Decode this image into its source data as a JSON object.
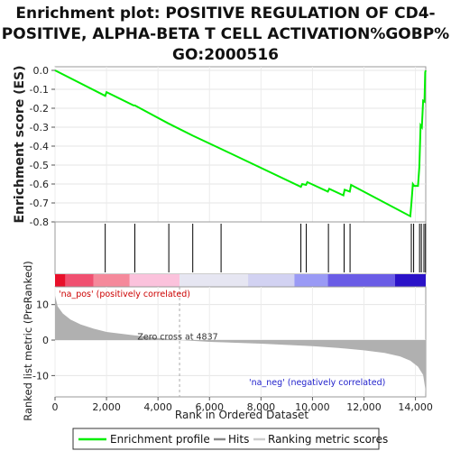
{
  "chart_data": {
    "type": "line",
    "title_lines": [
      "Enrichment plot: POSITIVE REGULATION OF CD4-",
      "POSITIVE, ALPHA-BETA T CELL ACTIVATION%GOBP%",
      "GO:2000516"
    ],
    "es_panel": {
      "ylabel": "Enrichment score (ES)",
      "ylim": [
        -0.8,
        0.0
      ],
      "yticks": [
        "0.0",
        "-0.1",
        "-0.2",
        "-0.3",
        "-0.4",
        "-0.5",
        "-0.6",
        "-0.7",
        "-0.8"
      ],
      "ytick_values": [
        0.0,
        -0.1,
        -0.2,
        -0.3,
        -0.4,
        -0.5,
        -0.6,
        -0.7,
        -0.8
      ],
      "series": [
        {
          "name": "Enrichment profile",
          "color": "#00ee00",
          "x": [
            0,
            1950,
            2000,
            3050,
            3100,
            4400,
            5350,
            6450,
            9550,
            9600,
            9750,
            9800,
            10600,
            10650,
            11200,
            11250,
            11450,
            11500,
            13800,
            13850,
            13900,
            13950,
            14100,
            14150,
            14200,
            14250,
            14300,
            14350,
            14380,
            14400
          ],
          "y": [
            0.0,
            -0.135,
            -0.115,
            -0.185,
            -0.185,
            -0.28,
            -0.345,
            -0.415,
            -0.615,
            -0.6,
            -0.605,
            -0.59,
            -0.64,
            -0.625,
            -0.66,
            -0.63,
            -0.64,
            -0.605,
            -0.77,
            -0.69,
            -0.6,
            -0.61,
            -0.61,
            -0.51,
            -0.29,
            -0.3,
            -0.16,
            -0.165,
            -0.01,
            0.0
          ]
        }
      ]
    },
    "hits": {
      "name": "Hits",
      "positions": [
        1950,
        3100,
        4420,
        5350,
        6450,
        9550,
        9760,
        10620,
        11230,
        11460,
        13840,
        13930,
        14160,
        14230,
        14330,
        14390
      ]
    },
    "rank_panel": {
      "ylabel": "Ranked list metric (PreRanked)",
      "xlabel": "Rank in Ordered Dataset",
      "ylim": [
        -16,
        15
      ],
      "yticks": [
        "10",
        "0",
        "-10"
      ],
      "ytick_values": [
        10,
        0,
        -10
      ],
      "metric_curve": {
        "x": [
          0,
          100,
          300,
          600,
          1000,
          1500,
          2000,
          3000,
          4000,
          4837,
          6000,
          8000,
          10000,
          11000,
          12000,
          12800,
          13400,
          13800,
          14100,
          14300,
          14380,
          14400
        ],
        "y": [
          12.5,
          9.5,
          7.5,
          5.8,
          4.4,
          3.2,
          2.3,
          1.4,
          0.6,
          0.0,
          -0.5,
          -1.0,
          -1.7,
          -2.2,
          -2.9,
          -3.6,
          -4.6,
          -5.8,
          -7.5,
          -9.8,
          -13.5,
          -15.5
        ]
      },
      "zero_cross_label": "Zero cross at 4837",
      "zero_cross_x": 4837,
      "pos_label": "'na_pos' (positively correlated)",
      "neg_label": "'na_neg' (negatively correlated)",
      "pos_color": "#cc0000",
      "neg_color": "#2222cc"
    },
    "xaxis": {
      "xlim": [
        0,
        14400
      ],
      "xticks": [
        "0",
        "2,000",
        "4,000",
        "6,000",
        "8,000",
        "10,000",
        "12,000",
        "14,000"
      ],
      "xtick_values": [
        0,
        2000,
        4000,
        6000,
        8000,
        10000,
        12000,
        14000
      ]
    },
    "heatbar": {
      "segments": [
        {
          "x0": 0,
          "x1": 400,
          "color": "#e8102a"
        },
        {
          "x0": 400,
          "x1": 1500,
          "color": "#f05070"
        },
        {
          "x0": 1500,
          "x1": 2900,
          "color": "#f5899b"
        },
        {
          "x0": 2900,
          "x1": 4837,
          "color": "#fbc2dc"
        },
        {
          "x0": 4837,
          "x1": 7500,
          "color": "#e6e6f2"
        },
        {
          "x0": 7500,
          "x1": 9300,
          "color": "#d2d2f2"
        },
        {
          "x0": 9300,
          "x1": 10600,
          "color": "#9a9af5"
        },
        {
          "x0": 10600,
          "x1": 13200,
          "color": "#6a5ce6"
        },
        {
          "x0": 13200,
          "x1": 14400,
          "color": "#2a12c8"
        }
      ]
    },
    "legend": [
      {
        "label": "Enrichment profile",
        "color": "#00ee00"
      },
      {
        "label": "Hits",
        "color": "#888888"
      },
      {
        "label": "Ranking metric scores",
        "color": "#cccccc"
      }
    ]
  }
}
